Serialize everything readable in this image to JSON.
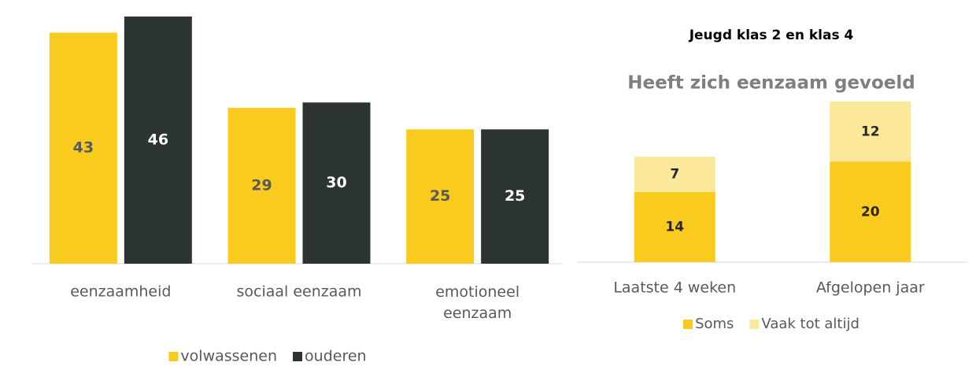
{
  "chart_data": [
    {
      "type": "bar",
      "categories": [
        "eenzaamheid",
        "sociaal eenzaam",
        "emotioneel eenzaam"
      ],
      "series": [
        {
          "name": "volwassenen",
          "color": "#f9cb1e",
          "label_color": "#595959",
          "values": [
            43,
            29,
            25
          ]
        },
        {
          "name": "ouderen",
          "color": "#2b342f",
          "label_color": "#ffffff",
          "values": [
            46,
            30,
            25
          ]
        }
      ]
    },
    {
      "type": "stacked_bar",
      "title": "Jeugd klas 2 en klas 4",
      "subtitle": "Heeft zich eenzaam gevoeld",
      "categories": [
        "Laatste 4 weken",
        "Afgelopen jaar"
      ],
      "series": [
        {
          "name": "Soms",
          "color": "#f9cb1e",
          "values": [
            14,
            20
          ]
        },
        {
          "name": "Vaak tot altijd",
          "color": "#fbe89a",
          "values": [
            7,
            12
          ]
        }
      ]
    }
  ]
}
